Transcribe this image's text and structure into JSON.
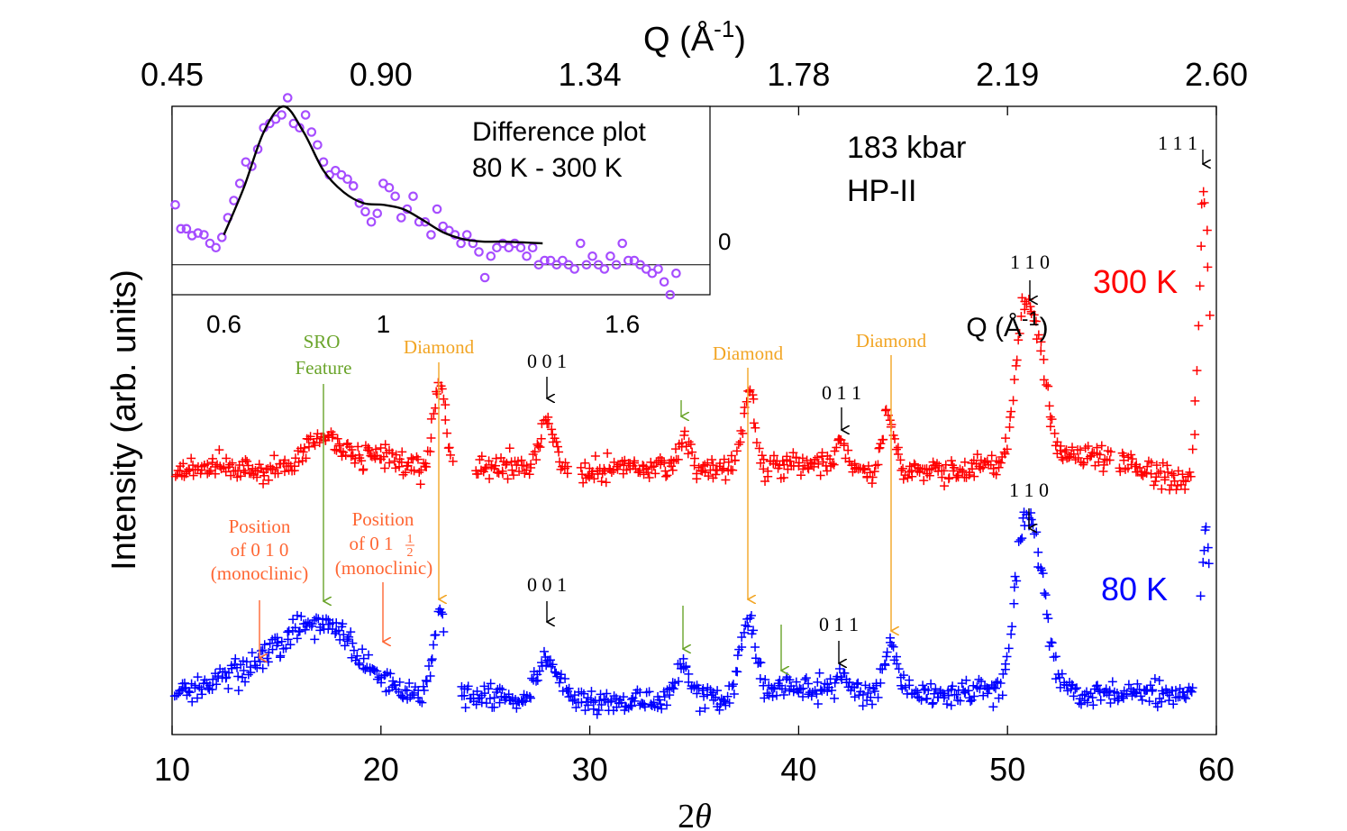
{
  "chart_data": {
    "type": "scatter",
    "x_axis": {
      "label": "2",
      "label_symbol": "θ",
      "range": [
        10,
        60
      ],
      "ticks": [
        "10",
        "20",
        "30",
        "40",
        "50",
        "60"
      ],
      "tick_values": [
        10,
        20,
        30,
        40,
        50,
        60
      ]
    },
    "top_axis": {
      "label": "Q (Å",
      "label_exp": "-1",
      "label_end": ")",
      "ticks": [
        "0.45",
        "0.90",
        "1.34",
        "1.78",
        "2.19",
        "2.60"
      ],
      "tick_positions_2theta": [
        10,
        20,
        30,
        40,
        50,
        60
      ]
    },
    "y_axis": {
      "label": "Intensity (arb. units)"
    },
    "pressure": "183 kbar",
    "phase": "HP-II",
    "series": [
      {
        "name": "300 K",
        "color": "#ff0000",
        "offset": 522,
        "amp": 1,
        "baseline": [
          [
            10,
            0
          ],
          [
            12,
            5
          ],
          [
            14,
            2
          ],
          [
            16,
            -10
          ],
          [
            18,
            10
          ],
          [
            20,
            15
          ],
          [
            22,
            0
          ],
          [
            26,
            5
          ],
          [
            30,
            0
          ],
          [
            34,
            5
          ],
          [
            38,
            0
          ],
          [
            40,
            10
          ],
          [
            44,
            0
          ],
          [
            48,
            2
          ],
          [
            53,
            15
          ],
          [
            55,
            15
          ],
          [
            58,
            -10
          ],
          [
            59,
            -15
          ]
        ],
        "peaks": [
          {
            "c": 17.0,
            "h": 35,
            "w": 1.0
          },
          {
            "c": 22.8,
            "h": 95,
            "w": 0.3
          },
          {
            "c": 28.0,
            "h": 55,
            "w": 0.3
          },
          {
            "c": 34.5,
            "h": 30,
            "w": 0.25
          },
          {
            "c": 37.6,
            "h": 85,
            "w": 0.3
          },
          {
            "c": 42.0,
            "h": 30,
            "w": 0.25
          },
          {
            "c": 44.3,
            "h": 60,
            "w": 0.3
          },
          {
            "c": 50.6,
            "h": 70,
            "w": 0.3
          },
          {
            "c": 51.2,
            "h": 155,
            "w": 0.55
          },
          {
            "c": 59.4,
            "h": 320,
            "w": 0.25
          }
        ],
        "gaps": [
          [
            23.5,
            24.5
          ],
          [
            29.0,
            29.5
          ],
          [
            55.0,
            55.3
          ]
        ]
      },
      {
        "name": "80 K",
        "color": "#0000ff",
        "offset": 770,
        "amp": 1,
        "baseline": [
          [
            10,
            0
          ],
          [
            13,
            15
          ],
          [
            15,
            0
          ],
          [
            20,
            0
          ],
          [
            24,
            0
          ],
          [
            30,
            -10
          ],
          [
            36,
            -5
          ],
          [
            40,
            5
          ],
          [
            46,
            0
          ],
          [
            48,
            0
          ],
          [
            54,
            0
          ],
          [
            58,
            0
          ]
        ],
        "peaks": [
          {
            "c": 17.0,
            "h": 80,
            "w": 1.7
          },
          {
            "c": 14.5,
            "h": 15,
            "w": 0.8
          },
          {
            "c": 22.8,
            "h": 85,
            "w": 0.3
          },
          {
            "c": 28.0,
            "h": 45,
            "w": 0.5
          },
          {
            "c": 34.4,
            "h": 35,
            "w": 0.35
          },
          {
            "c": 37.6,
            "h": 85,
            "w": 0.35
          },
          {
            "c": 39.2,
            "h": 10,
            "w": 0.3
          },
          {
            "c": 42.0,
            "h": 15,
            "w": 0.3
          },
          {
            "c": 44.4,
            "h": 55,
            "w": 0.3
          },
          {
            "c": 50.6,
            "h": 70,
            "w": 0.35
          },
          {
            "c": 51.2,
            "h": 170,
            "w": 0.6
          },
          {
            "c": 59.5,
            "h": 180,
            "w": 0.25
          }
        ],
        "gaps": [
          [
            23.0,
            23.8
          ],
          [
            58.9,
            59.2
          ]
        ]
      }
    ],
    "annotations": [
      {
        "text": "SRO",
        "color": "#6aa42a",
        "x": 17.0
      },
      {
        "text": "Feature",
        "color": "#6aa42a",
        "x": 17.0
      },
      {
        "text": "Diamond",
        "color": "#f2a524",
        "x": 22.8
      },
      {
        "text": "Diamond",
        "color": "#f2a524",
        "x": 37.6
      },
      {
        "text": "Diamond",
        "color": "#f2a524",
        "x": 44.3
      },
      {
        "text": "Position",
        "color": "#ff6633",
        "x": 14.2
      },
      {
        "text": "of 0 1 0",
        "color": "#ff6633",
        "x": 14.2
      },
      {
        "text": "(monoclinic)",
        "color": "#ff6633",
        "x": 14.2
      },
      {
        "text": "Position",
        "color": "#ff6633",
        "x": 20.0
      },
      {
        "text": "of 0 1",
        "color": "#ff6633",
        "x": 20.0
      },
      {
        "text": "(monoclinic)",
        "color": "#ff6633",
        "x": 20.0
      },
      {
        "text": "0 0 1",
        "color": "#000000",
        "x": 28.0,
        "series": "300 K"
      },
      {
        "text": "0 1 1",
        "color": "#000000",
        "x": 42.0,
        "series": "300 K"
      },
      {
        "text": "1 1 0",
        "color": "#000000",
        "x": 51.2,
        "series": "300 K"
      },
      {
        "text": "1 1 1",
        "color": "#000000",
        "x": 59.4,
        "series": "300 K"
      },
      {
        "text": "0 0 1",
        "color": "#000000",
        "x": 28.0,
        "series": "80 K"
      },
      {
        "text": "0 1 1",
        "color": "#000000",
        "x": 42.0,
        "series": "80 K"
      },
      {
        "text": "1 1 0",
        "color": "#000000",
        "x": 51.2,
        "series": "80 K"
      }
    ],
    "fraction": {
      "numerator": "1",
      "denominator": "2"
    },
    "inset": {
      "title_line1": "Difference plot",
      "title_line2": "80 K - 300 K",
      "x_ticks": [
        "0.6",
        "1",
        "1.6"
      ],
      "x_tick_values": [
        0.6,
        1.0,
        1.6
      ],
      "x_range": [
        0.47,
        1.82
      ],
      "y_range": [
        -0.35,
        1.85
      ],
      "zero_label": "0",
      "xlabel": "Q (Å",
      "xlabel_exp": "-1",
      "xlabel_end": ")",
      "marker_color": "#a64dff",
      "points": [
        [
          0.478,
          0.7
        ],
        [
          0.492,
          0.42
        ],
        [
          0.506,
          0.42
        ],
        [
          0.52,
          0.34
        ],
        [
          0.535,
          0.37
        ],
        [
          0.55,
          0.35
        ],
        [
          0.565,
          0.25
        ],
        [
          0.58,
          0.2
        ],
        [
          0.595,
          0.32
        ],
        [
          0.61,
          0.55
        ],
        [
          0.625,
          0.75
        ],
        [
          0.64,
          0.95
        ],
        [
          0.655,
          1.2
        ],
        [
          0.67,
          1.15
        ],
        [
          0.685,
          1.35
        ],
        [
          0.7,
          1.6
        ],
        [
          0.715,
          1.65
        ],
        [
          0.73,
          1.7
        ],
        [
          0.745,
          1.75
        ],
        [
          0.76,
          1.95
        ],
        [
          0.775,
          1.65
        ],
        [
          0.79,
          1.6
        ],
        [
          0.805,
          1.75
        ],
        [
          0.82,
          1.55
        ],
        [
          0.835,
          1.4
        ],
        [
          0.85,
          1.2
        ],
        [
          0.865,
          1.05
        ],
        [
          0.88,
          1.1
        ],
        [
          0.895,
          1.05
        ],
        [
          0.91,
          1.0
        ],
        [
          0.925,
          0.92
        ],
        [
          0.94,
          0.72
        ],
        [
          0.955,
          0.62
        ],
        [
          0.97,
          0.5
        ],
        [
          0.985,
          0.6
        ],
        [
          1.0,
          0.95
        ],
        [
          1.015,
          0.9
        ],
        [
          1.03,
          0.8
        ],
        [
          1.045,
          0.55
        ],
        [
          1.06,
          0.65
        ],
        [
          1.075,
          0.8
        ],
        [
          1.09,
          0.5
        ],
        [
          1.105,
          0.5
        ],
        [
          1.12,
          0.35
        ],
        [
          1.135,
          0.65
        ],
        [
          1.15,
          0.45
        ],
        [
          1.165,
          0.4
        ],
        [
          1.18,
          0.35
        ],
        [
          1.195,
          0.25
        ],
        [
          1.21,
          0.35
        ],
        [
          1.225,
          0.25
        ],
        [
          1.24,
          0.15
        ],
        [
          1.255,
          -0.15
        ],
        [
          1.27,
          0.1
        ],
        [
          1.285,
          0.2
        ],
        [
          1.3,
          0.25
        ],
        [
          1.315,
          0.2
        ],
        [
          1.33,
          0.25
        ],
        [
          1.345,
          0.2
        ],
        [
          1.36,
          0.1
        ],
        [
          1.375,
          0.2
        ],
        [
          1.39,
          0.0
        ],
        [
          1.405,
          0.05
        ],
        [
          1.42,
          0.05
        ],
        [
          1.435,
          0.0
        ],
        [
          1.45,
          0.05
        ],
        [
          1.465,
          0.0
        ],
        [
          1.48,
          -0.05
        ],
        [
          1.495,
          0.25
        ],
        [
          1.51,
          0.0
        ],
        [
          1.525,
          0.1
        ],
        [
          1.54,
          0.0
        ],
        [
          1.555,
          -0.05
        ],
        [
          1.57,
          0.1
        ],
        [
          1.585,
          0.0
        ],
        [
          1.6,
          0.25
        ],
        [
          1.615,
          0.05
        ],
        [
          1.63,
          0.05
        ],
        [
          1.645,
          0.0
        ],
        [
          1.66,
          -0.05
        ],
        [
          1.675,
          -0.1
        ],
        [
          1.69,
          -0.05
        ],
        [
          1.705,
          -0.2
        ],
        [
          1.72,
          -0.35
        ],
        [
          1.735,
          -0.1
        ]
      ],
      "fit": [
        [
          0.6,
          0.35
        ],
        [
          0.65,
          0.9
        ],
        [
          0.7,
          1.55
        ],
        [
          0.75,
          1.85
        ],
        [
          0.8,
          1.55
        ],
        [
          0.85,
          1.1
        ],
        [
          0.9,
          0.85
        ],
        [
          0.95,
          0.72
        ],
        [
          1.0,
          0.7
        ],
        [
          1.05,
          0.65
        ],
        [
          1.1,
          0.52
        ],
        [
          1.15,
          0.38
        ],
        [
          1.2,
          0.3
        ],
        [
          1.25,
          0.27
        ],
        [
          1.3,
          0.27
        ],
        [
          1.4,
          0.25
        ]
      ]
    }
  }
}
